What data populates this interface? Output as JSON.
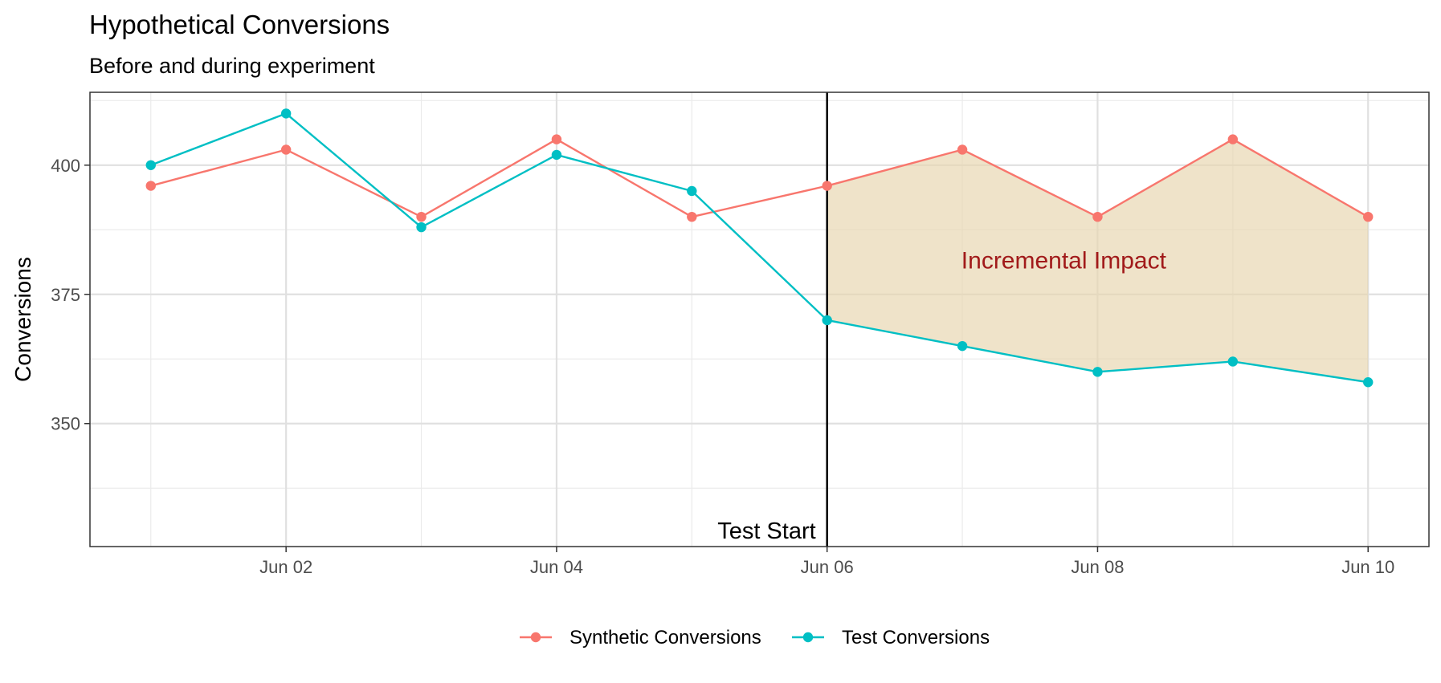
{
  "chart_data": {
    "type": "line",
    "title": "Hypothetical Conversions",
    "subtitle": "Before and during experiment",
    "xlabel": "",
    "ylabel": "Conversions",
    "x": [
      1,
      2,
      3,
      4,
      5,
      6,
      7,
      8,
      9,
      10
    ],
    "x_tick_values": [
      2,
      4,
      6,
      8,
      10
    ],
    "x_tick_labels": [
      "Jun 02",
      "Jun 04",
      "Jun 06",
      "Jun 08",
      "Jun 10"
    ],
    "xlim": [
      0.55,
      10.45
    ],
    "ylim": [
      326.2,
      414.1
    ],
    "y_major_ticks": [
      350,
      375,
      400
    ],
    "y_minor_ticks": [
      337.5,
      362.5,
      387.5,
      412.5
    ],
    "x_minor_ticks": [
      1,
      3,
      5,
      7,
      9
    ],
    "series": [
      {
        "name": "Synthetic Conversions",
        "color": "#F8766D",
        "values": [
          396,
          403,
          390,
          405,
          390,
          396,
          403,
          390,
          405,
          390
        ]
      },
      {
        "name": "Test Conversions",
        "color": "#00BFC4",
        "values": [
          400,
          410,
          388,
          402,
          395,
          370,
          365,
          360,
          362,
          358
        ]
      }
    ],
    "shaded_region": {
      "from_x": 6,
      "to_x": 10,
      "upper": "Synthetic Conversions",
      "lower": "Test Conversions",
      "fill": "#E8D5B0"
    },
    "vline": {
      "x": 6,
      "label": "Test Start"
    },
    "annotation": {
      "text": "Incremental Impact",
      "x": 7.75,
      "y": 380,
      "color": "#A11A1A"
    },
    "legend_position": "bottom",
    "grid": true
  }
}
